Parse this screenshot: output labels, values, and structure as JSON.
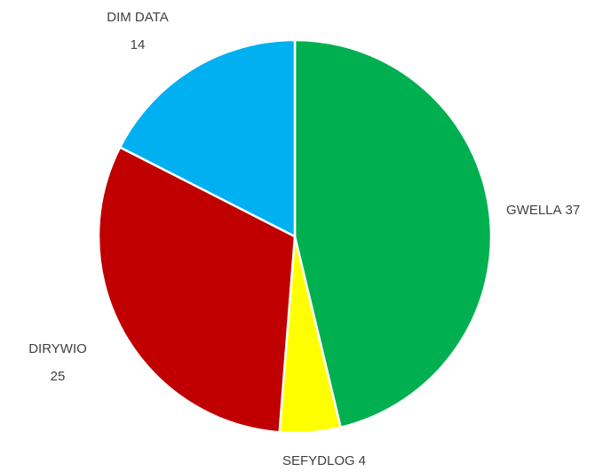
{
  "chart_data": {
    "type": "pie",
    "categories": [
      "GWELLA",
      "SEFYDLOG",
      "DIRYWIO",
      "DIM DATA"
    ],
    "values": [
      37,
      4,
      25,
      14
    ],
    "colors": [
      "#00b050",
      "#ffff00",
      "#c00000",
      "#00b0f0"
    ]
  }
}
